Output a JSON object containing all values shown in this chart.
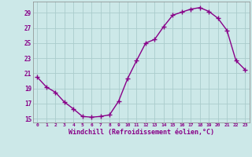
{
  "x": [
    0,
    1,
    2,
    3,
    4,
    5,
    6,
    7,
    8,
    9,
    10,
    11,
    12,
    13,
    14,
    15,
    16,
    17,
    18,
    19,
    20,
    21,
    22,
    23
  ],
  "y": [
    20.5,
    19.2,
    18.5,
    17.2,
    16.3,
    15.3,
    15.2,
    15.3,
    15.5,
    17.3,
    20.3,
    22.7,
    25.0,
    25.5,
    27.2,
    28.7,
    29.1,
    29.5,
    29.7,
    29.2,
    28.3,
    26.7,
    22.7,
    21.5
  ],
  "line_color": "#880088",
  "marker": "+",
  "marker_color": "#880088",
  "bg_color": "#cce8e8",
  "grid_color": "#aacccc",
  "xlabel": "Windchill (Refroidissement éolien,°C)",
  "xlabel_color": "#880088",
  "tick_color": "#880088",
  "ylim": [
    14.5,
    30.5
  ],
  "yticks": [
    15,
    17,
    19,
    21,
    23,
    25,
    27,
    29
  ],
  "xlim": [
    -0.5,
    23.5
  ],
  "xticks": [
    0,
    1,
    2,
    3,
    4,
    5,
    6,
    7,
    8,
    9,
    10,
    11,
    12,
    13,
    14,
    15,
    16,
    17,
    18,
    19,
    20,
    21,
    22,
    23
  ],
  "xtick_labels": [
    "0",
    "1",
    "2",
    "3",
    "4",
    "5",
    "6",
    "7",
    "8",
    "9",
    "10",
    "11",
    "12",
    "13",
    "14",
    "15",
    "16",
    "17",
    "18",
    "19",
    "20",
    "21",
    "22",
    "23"
  ],
  "line_width": 1.0,
  "marker_size": 4,
  "spine_color": "#888888"
}
